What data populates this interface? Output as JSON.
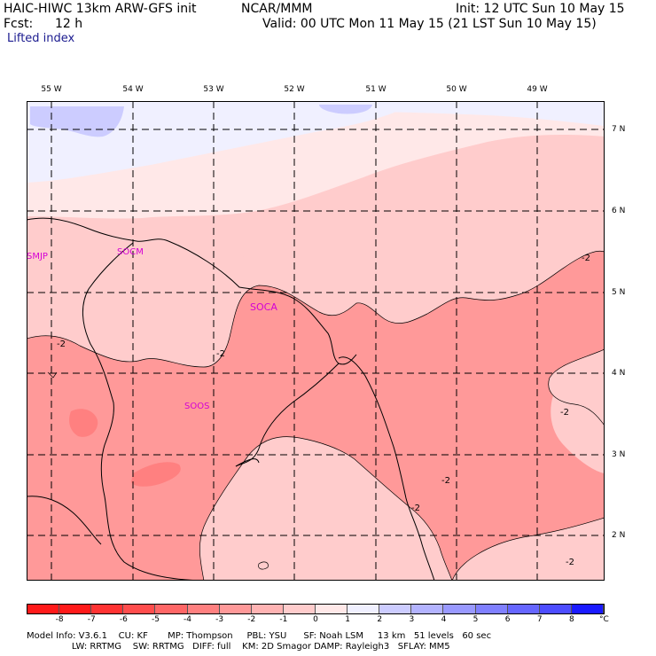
{
  "header": {
    "model": "HAIC-HIWC 13km ARW-GFS init",
    "org": "NCAR/MMM",
    "init": "Init: 12 UTC Sun 10 May 15",
    "fcst_label": "Fcst:",
    "fcst_value": "12 h",
    "valid": "Valid: 00 UTC Mon 11 May 15 (21 LST Sun 10 May 15)",
    "field": "Lifted index"
  },
  "map": {
    "lon_labels": [
      "55 W",
      "54 W",
      "53 W",
      "52 W",
      "51 W",
      "50 W",
      "49 W"
    ],
    "lat_labels": [
      "7 N",
      "6 N",
      "5 N",
      "4 N",
      "3 N",
      "2 N"
    ],
    "stations": [
      "SMJP",
      "SOCM",
      "SOCA",
      "SOOS"
    ],
    "contour_labels": [
      "-2",
      "-2",
      "-2",
      "-2",
      "-2",
      "-2",
      "-2"
    ],
    "station_color": "#d400d4"
  },
  "colorbar": {
    "ticks": [
      "-8",
      "-7",
      "-6",
      "-5",
      "-4",
      "-3",
      "-2",
      "-1",
      "0",
      "1",
      "2",
      "3",
      "4",
      "5",
      "6",
      "7",
      "8"
    ],
    "unit": "°C",
    "colors": [
      "#ff1a1a",
      "#ff3333",
      "#ff4d4d",
      "#ff6666",
      "#ff8080",
      "#ff9999",
      "#ffb3b3",
      "#ffcccc",
      "#ffe8e8",
      "#f0f0ff",
      "#ccccff",
      "#b3b3ff",
      "#9999ff",
      "#8080ff",
      "#6666ff",
      "#4d4dff",
      "#1a1aff"
    ]
  },
  "footer": {
    "line1": "Model Info: V3.6.1    CU: KF       MP: Thompson     PBL: YSU      SF: Noah LSM     13 km   51 levels   60 sec",
    "line2": "                LW: RRTMG    SW: RRTMG   DIFF: full    KM: 2D Smagor DAMP: Rayleigh3   SFLAY: MM5"
  }
}
